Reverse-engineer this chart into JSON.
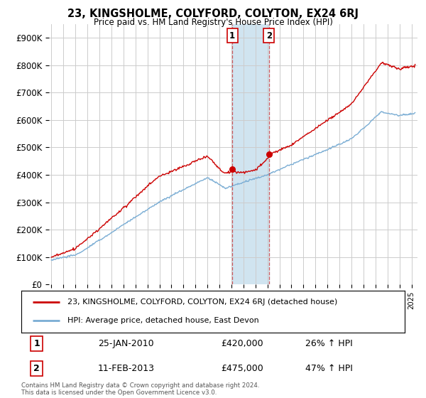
{
  "title": "23, KINGSHOLME, COLYFORD, COLYTON, EX24 6RJ",
  "subtitle": "Price paid vs. HM Land Registry's House Price Index (HPI)",
  "ylabel_ticks": [
    "£0",
    "£100K",
    "£200K",
    "£300K",
    "£400K",
    "£500K",
    "£600K",
    "£700K",
    "£800K",
    "£900K"
  ],
  "ytick_vals": [
    0,
    100000,
    200000,
    300000,
    400000,
    500000,
    600000,
    700000,
    800000,
    900000
  ],
  "ylim": [
    0,
    950000
  ],
  "xlim_start": 1994.8,
  "xlim_end": 2025.5,
  "legend_line1": "23, KINGSHOLME, COLYFORD, COLYTON, EX24 6RJ (detached house)",
  "legend_line2": "HPI: Average price, detached house, East Devon",
  "sale1_date": "25-JAN-2010",
  "sale1_price": "£420,000",
  "sale1_hpi": "26% ↑ HPI",
  "sale1_x": 2010.07,
  "sale1_y": 420000,
  "sale2_date": "11-FEB-2013",
  "sale2_price": "£475,000",
  "sale2_hpi": "47% ↑ HPI",
  "sale2_x": 2013.12,
  "sale2_y": 475000,
  "hpi_color": "#7aadd4",
  "sale_color": "#cc0000",
  "span_color": "#d0e4f0",
  "background_color": "#ffffff",
  "grid_color": "#cccccc",
  "footnote": "Contains HM Land Registry data © Crown copyright and database right 2024.\nThis data is licensed under the Open Government Licence v3.0."
}
